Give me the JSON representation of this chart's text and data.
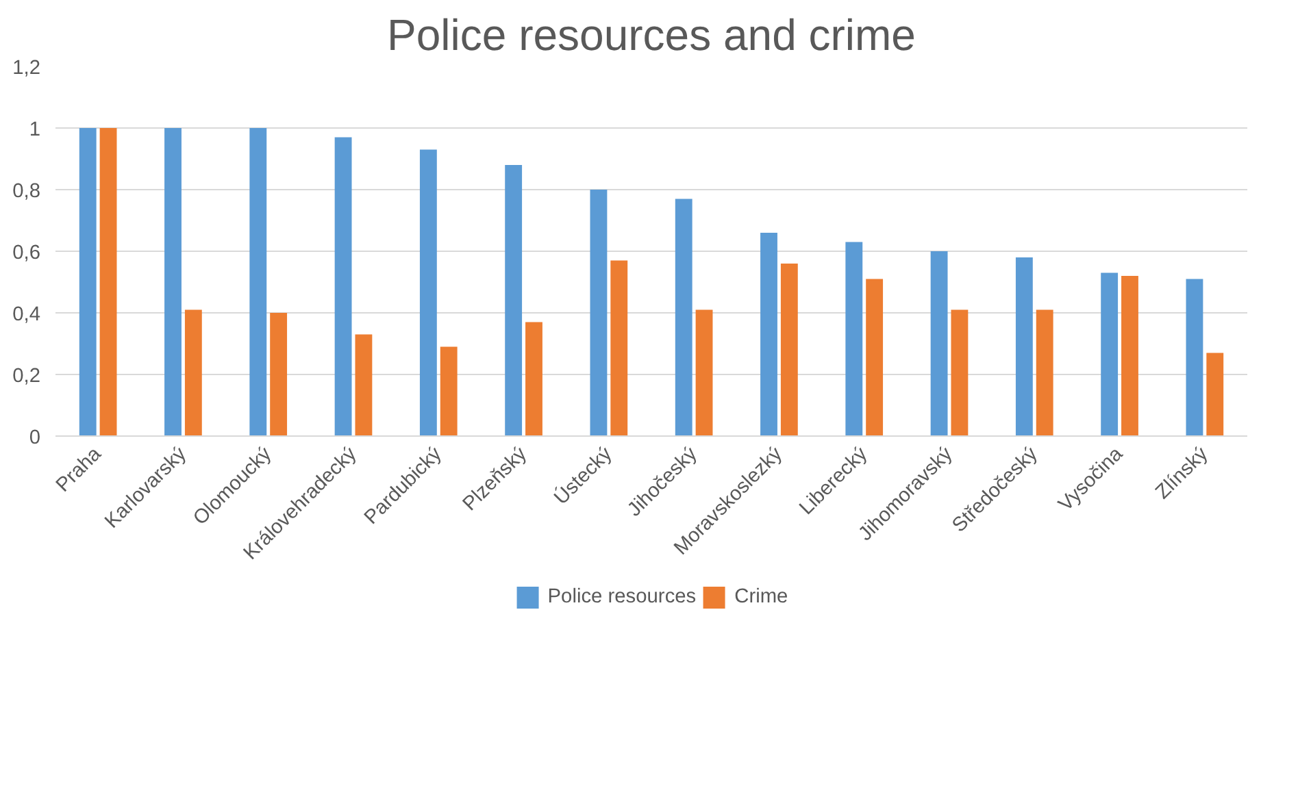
{
  "chart_data": {
    "type": "bar",
    "title": "Police resources and crime",
    "categories": [
      "Praha",
      "Karlovarský",
      "Olomoucký",
      "Královehradecký",
      "Pardubický",
      "Plzeňský",
      "Ústecký",
      "Jihočeský",
      "Moravskoslezký",
      "Liberecký",
      "Jihomoravský",
      "Středočeský",
      "Vysočina",
      "Zlínský"
    ],
    "series": [
      {
        "name": "Police resources",
        "color": "#5b9bd5",
        "values": [
          1,
          1,
          1,
          0.97,
          0.93,
          0.88,
          0.8,
          0.77,
          0.66,
          0.63,
          0.6,
          0.58,
          0.53,
          0.51
        ]
      },
      {
        "name": "Crime",
        "color": "#ed7d31",
        "values": [
          1,
          0.41,
          0.4,
          0.33,
          0.29,
          0.37,
          0.57,
          0.41,
          0.56,
          0.51,
          0.41,
          0.41,
          0.52,
          0.27
        ]
      }
    ],
    "ylim": [
      0,
      1.2
    ],
    "yticks": [
      0,
      {
        "value": 0.2,
        "label": "0,2"
      },
      {
        "value": 0.4,
        "label": "0,4"
      },
      {
        "value": 0.6,
        "label": "0,6"
      },
      {
        "value": 0.8,
        "label": "0,8"
      },
      1,
      {
        "value": 1.2,
        "label": "1,2"
      }
    ],
    "grid": "y",
    "legend": "bottom"
  }
}
